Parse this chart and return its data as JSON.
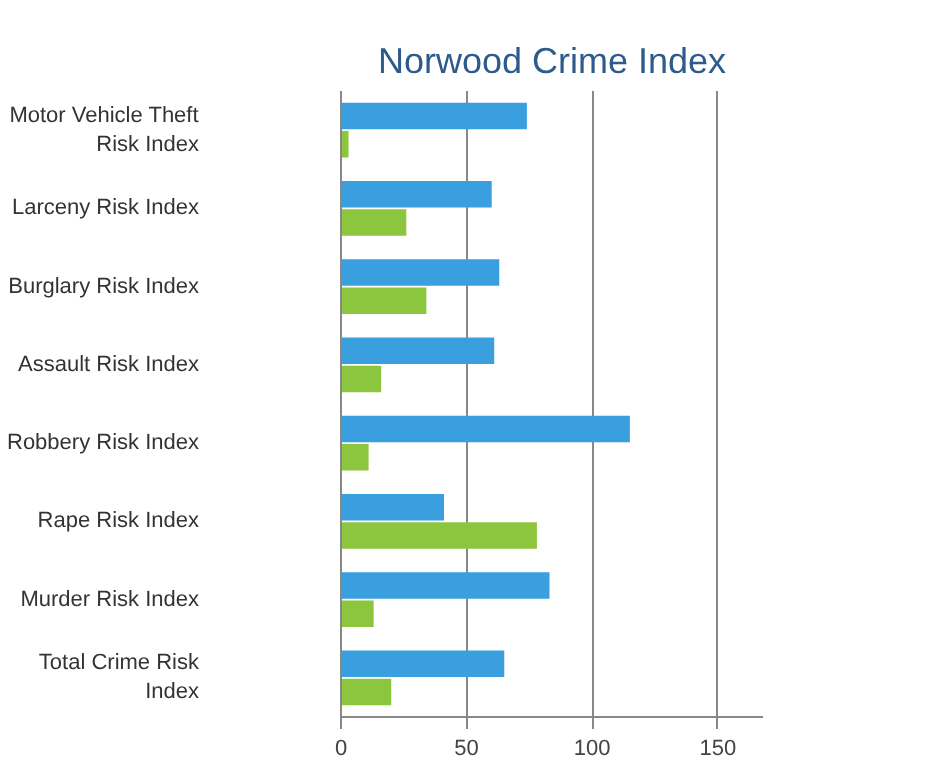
{
  "chart_data": {
    "type": "bar",
    "orientation": "horizontal",
    "title": "Norwood Crime Index",
    "categories": [
      "Motor Vehicle Theft Risk Index",
      "Larceny Risk Index",
      "Burglary Risk Index",
      "Assault Risk Index",
      "Robbery Risk Index",
      "Rape Risk Index",
      "Murder Risk Index",
      "Total Crime Risk Index"
    ],
    "series": [
      {
        "color": "#3a9fde",
        "values": [
          74,
          60,
          63,
          61,
          115,
          41,
          83,
          65
        ]
      },
      {
        "color": "#8cc63f",
        "values": [
          3,
          26,
          34,
          16,
          11,
          78,
          13,
          20
        ]
      }
    ],
    "xlim": [
      0,
      168
    ],
    "xticks": [
      0,
      50,
      100,
      150
    ],
    "grid": "x"
  }
}
